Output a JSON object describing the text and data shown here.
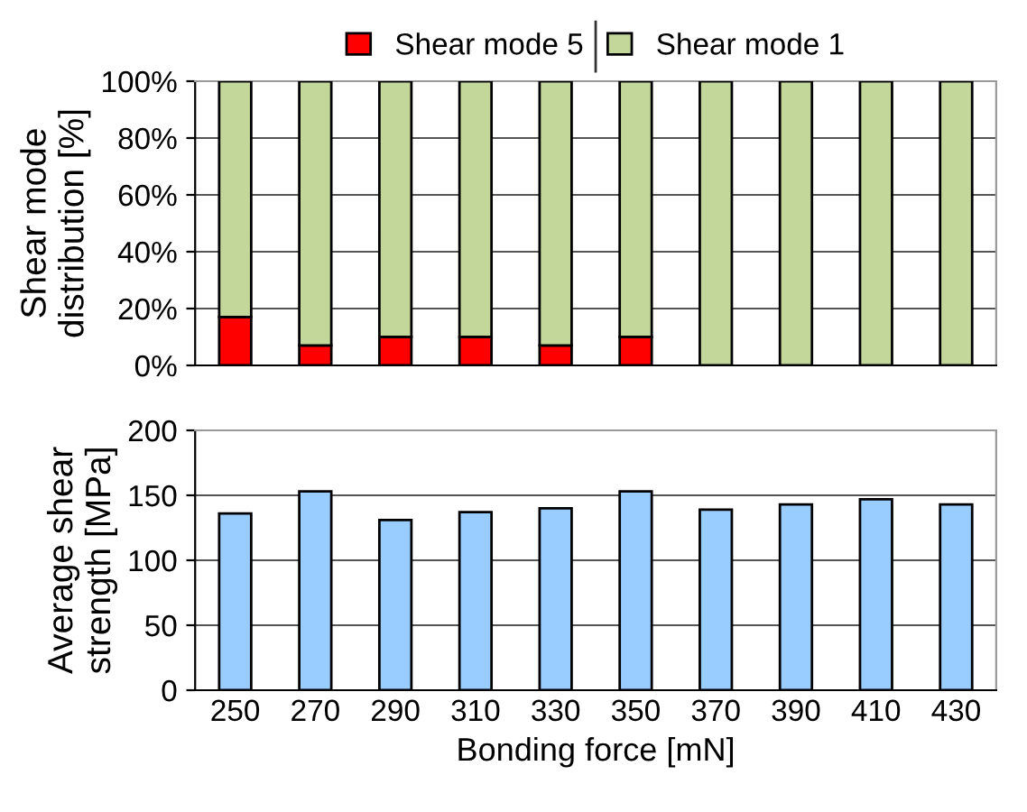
{
  "chart_data": [
    {
      "type": "bar",
      "stacked": true,
      "ylabel": "Shear mode\ndistribution [%]",
      "categories": [
        "250",
        "270",
        "290",
        "310",
        "330",
        "350",
        "370",
        "390",
        "410",
        "430"
      ],
      "series": [
        {
          "name": "Shear mode 5",
          "color": "#ff0000",
          "values": [
            17,
            7,
            10,
            10,
            7,
            10,
            0,
            0,
            0,
            0
          ]
        },
        {
          "name": "Shear mode 1",
          "color": "#c4d79b",
          "values": [
            83,
            93,
            90,
            90,
            93,
            90,
            100,
            100,
            100,
            100
          ]
        }
      ],
      "ylim": [
        0,
        100
      ],
      "yticks": [
        {
          "value": 0,
          "label": "0%"
        },
        {
          "value": 20,
          "label": "20%"
        },
        {
          "value": 40,
          "label": "40%"
        },
        {
          "value": 60,
          "label": "60%"
        },
        {
          "value": 80,
          "label": "80%"
        },
        {
          "value": 100,
          "label": "100%"
        }
      ],
      "grid": "y",
      "legend": "top",
      "tick_labels": "y"
    },
    {
      "type": "bar",
      "ylabel": "Average shear\nstrength [MPa]",
      "xlabel": "Bonding force [mN]",
      "categories": [
        "250",
        "270",
        "290",
        "310",
        "330",
        "350",
        "370",
        "390",
        "410",
        "430"
      ],
      "series": [
        {
          "color": "#99ccff",
          "values": [
            136,
            153,
            131,
            137,
            140,
            153,
            139,
            143,
            147,
            143
          ]
        }
      ],
      "ylim": [
        0,
        200
      ],
      "yticks": [
        0,
        50,
        100,
        150,
        200
      ],
      "grid": "y"
    }
  ]
}
